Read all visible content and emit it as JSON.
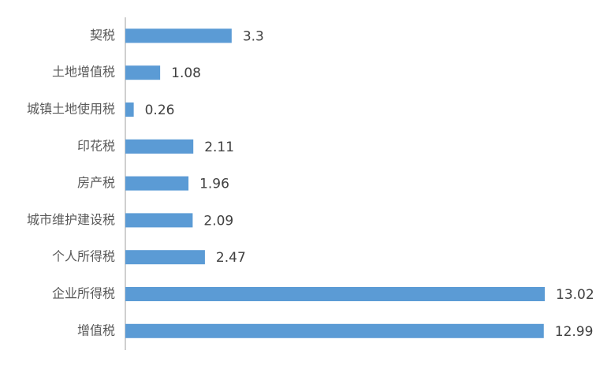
{
  "chart_data": {
    "type": "bar",
    "orientation": "horizontal",
    "categories": [
      "契税",
      "土地增值税",
      "城镇土地使用税",
      "印花税",
      "房产税",
      "城市维护建设税",
      "个人所得税",
      "企业所得税",
      "增值税"
    ],
    "values": [
      3.3,
      1.08,
      0.26,
      2.11,
      1.96,
      2.09,
      2.47,
      13.02,
      12.99
    ],
    "color": "#5b9bd5"
  }
}
